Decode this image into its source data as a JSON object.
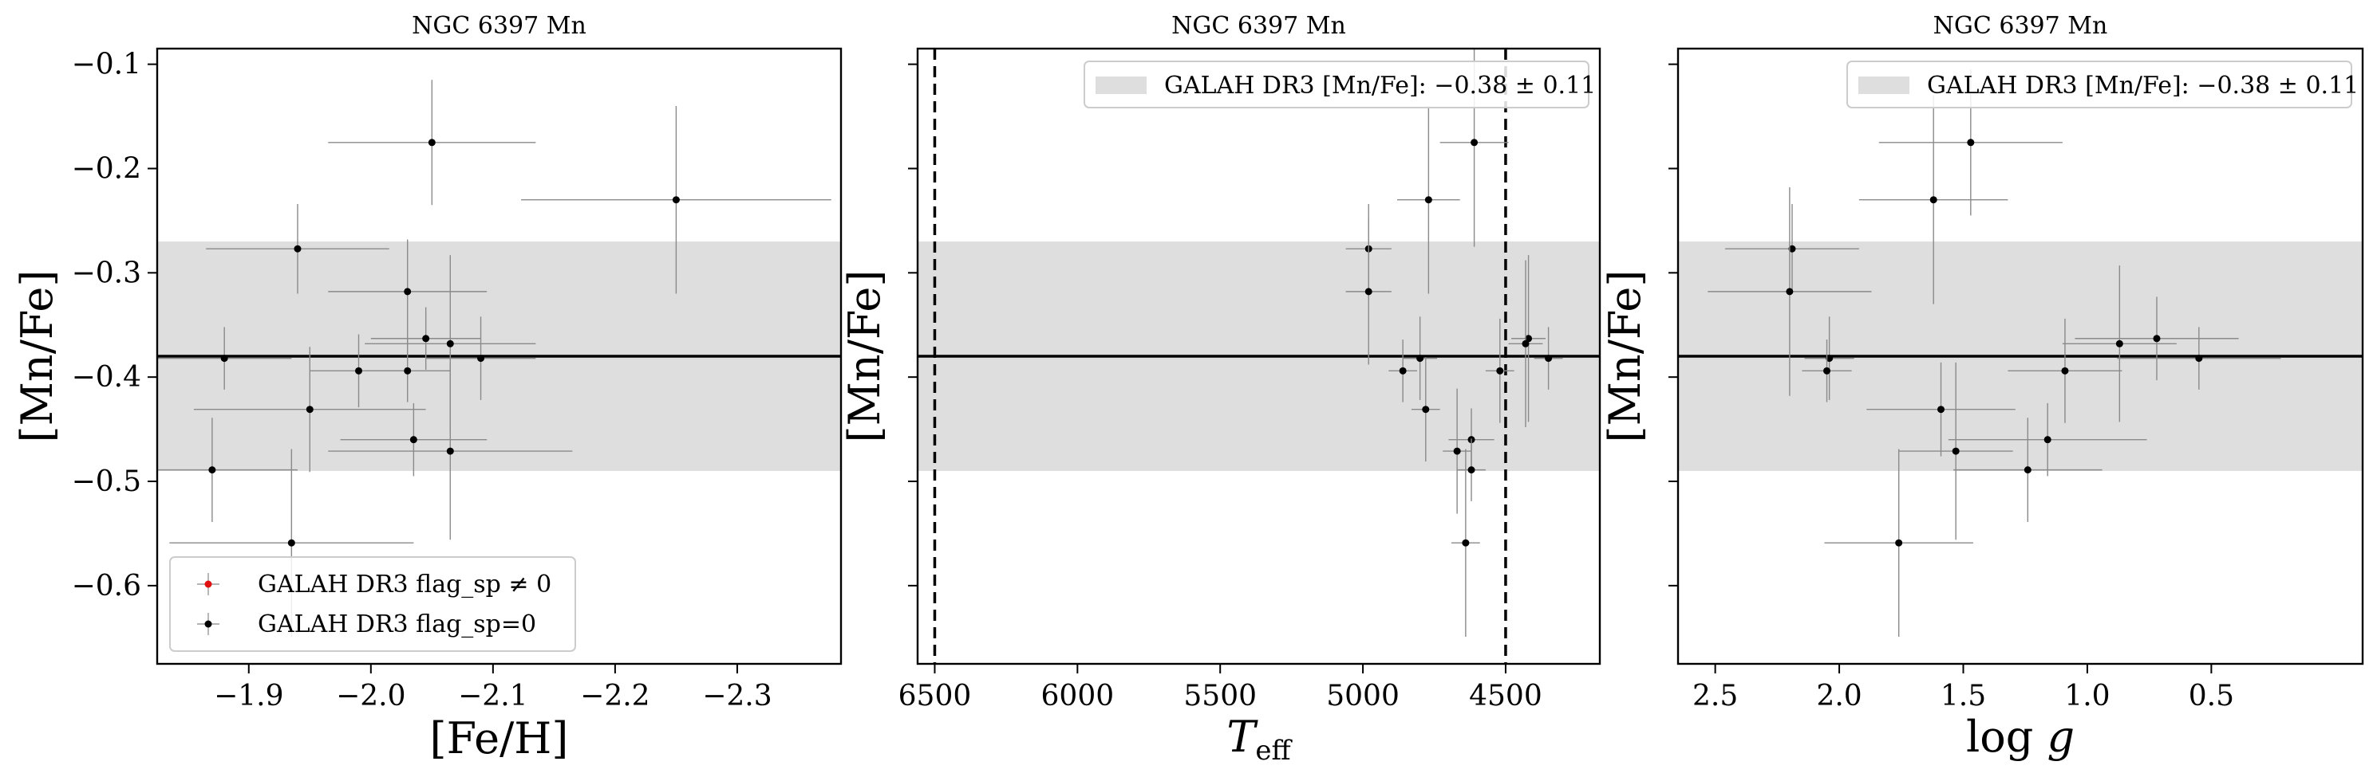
{
  "chart_data": [
    {
      "type": "scatter",
      "title": "NGC 6397 Mn",
      "xlabel": "[Fe/H]",
      "ylabel": "[Mn/Fe]",
      "xlim": [
        -1.825,
        -2.385
      ],
      "ylim": [
        -0.675,
        -0.085
      ],
      "xticks": [
        -1.9,
        -2.0,
        -2.1,
        -2.2,
        -2.3
      ],
      "xtick_labels": [
        "−1.9",
        "−2.0",
        "−2.1",
        "−2.2",
        "−2.3"
      ],
      "yticks": [
        -0.1,
        -0.2,
        -0.3,
        -0.4,
        -0.5,
        -0.6
      ],
      "ytick_labels": [
        "−0.1",
        "−0.2",
        "−0.3",
        "−0.4",
        "−0.5",
        "−0.6"
      ],
      "band": {
        "center": -0.38,
        "error": 0.11,
        "color": "#dedede"
      },
      "legend": {
        "position": "lower-left",
        "entries": [
          {
            "label": "GALAH DR3 flag_sp ≠ 0",
            "color": "#e01010"
          },
          {
            "label": "GALAH DR3 flag_sp=0",
            "color": "#000000"
          }
        ]
      },
      "series": [
        {
          "color": "#000000",
          "points": [
            {
              "x": -2.05,
              "y": -0.175,
              "xerr": 0.085,
              "yerr": 0.06
            },
            {
              "x": -2.25,
              "y": -0.23,
              "xerr": 0.127,
              "yerr": 0.09
            },
            {
              "x": -1.94,
              "y": -0.277,
              "xerr": 0.075,
              "yerr": 0.043
            },
            {
              "x": -2.03,
              "y": -0.318,
              "xerr": 0.065,
              "yerr": 0.05
            },
            {
              "x": -1.88,
              "y": -0.382,
              "xerr": 0.055,
              "yerr": 0.03
            },
            {
              "x": -2.09,
              "y": -0.382,
              "xerr": 0.045,
              "yerr": 0.04
            },
            {
              "x": -1.99,
              "y": -0.394,
              "xerr": 0.04,
              "yerr": 0.035
            },
            {
              "x": -2.03,
              "y": -0.394,
              "xerr": 0.035,
              "yerr": 0.03
            },
            {
              "x": -2.045,
              "y": -0.363,
              "xerr": 0.045,
              "yerr": 0.03
            },
            {
              "x": -2.065,
              "y": -0.368,
              "xerr": 0.07,
              "yerr": 0.085
            },
            {
              "x": -1.95,
              "y": -0.431,
              "xerr": 0.095,
              "yerr": 0.06
            },
            {
              "x": -2.035,
              "y": -0.46,
              "xerr": 0.06,
              "yerr": 0.035
            },
            {
              "x": -2.065,
              "y": -0.471,
              "xerr": 0.1,
              "yerr": 0.085
            },
            {
              "x": -1.87,
              "y": -0.489,
              "xerr": 0.07,
              "yerr": 0.05
            },
            {
              "x": -1.935,
              "y": -0.559,
              "xerr": 0.1,
              "yerr": 0.09
            }
          ]
        }
      ]
    },
    {
      "type": "scatter",
      "title": "NGC 6397 Mn",
      "xlabel": "T_eff",
      "ylabel": "[Mn/Fe]",
      "xlim": [
        6560,
        4170
      ],
      "ylim": [
        -0.675,
        -0.085
      ],
      "xticks": [
        6500,
        6000,
        5500,
        5000,
        4500
      ],
      "xtick_labels": [
        "6500",
        "6000",
        "5500",
        "5000",
        "4500"
      ],
      "yticks": [
        -0.1,
        -0.2,
        -0.3,
        -0.4,
        -0.5,
        -0.6
      ],
      "ytick_labels": [
        "",
        "",
        "",
        "",
        "",
        ""
      ],
      "band": {
        "center": -0.38,
        "error": 0.11,
        "color": "#dedede"
      },
      "vlines": [
        6500,
        4500
      ],
      "legend": {
        "position": "upper-right",
        "entries": [
          {
            "label": "GALAH DR3 [Mn/Fe]: −0.38 ± 0.11",
            "color": "#dedede"
          }
        ]
      },
      "series": [
        {
          "color": "#000000",
          "points": [
            {
              "x": 4610,
              "y": -0.175,
              "xerr": 120,
              "yerr": 0.1
            },
            {
              "x": 4770,
              "y": -0.23,
              "xerr": 110,
              "yerr": 0.09
            },
            {
              "x": 4980,
              "y": -0.277,
              "xerr": 80,
              "yerr": 0.043
            },
            {
              "x": 4980,
              "y": -0.318,
              "xerr": 80,
              "yerr": 0.07
            },
            {
              "x": 4420,
              "y": -0.363,
              "xerr": 60,
              "yerr": 0.08
            },
            {
              "x": 4430,
              "y": -0.368,
              "xerr": 60,
              "yerr": 0.08
            },
            {
              "x": 4350,
              "y": -0.382,
              "xerr": 50,
              "yerr": 0.03
            },
            {
              "x": 4800,
              "y": -0.382,
              "xerr": 60,
              "yerr": 0.04
            },
            {
              "x": 4860,
              "y": -0.394,
              "xerr": 50,
              "yerr": 0.03
            },
            {
              "x": 4520,
              "y": -0.394,
              "xerr": 50,
              "yerr": 0.05
            },
            {
              "x": 4780,
              "y": -0.431,
              "xerr": 50,
              "yerr": 0.05
            },
            {
              "x": 4620,
              "y": -0.46,
              "xerr": 80,
              "yerr": 0.03
            },
            {
              "x": 4670,
              "y": -0.471,
              "xerr": 50,
              "yerr": 0.06
            },
            {
              "x": 4620,
              "y": -0.489,
              "xerr": 50,
              "yerr": 0.03
            },
            {
              "x": 4640,
              "y": -0.559,
              "xerr": 50,
              "yerr": 0.09
            }
          ]
        }
      ]
    },
    {
      "type": "scatter",
      "title": "NGC 6397 Mn",
      "xlabel": "log g",
      "ylabel": "[Mn/Fe]",
      "xlim": [
        2.65,
        -0.11
      ],
      "ylim": [
        -0.675,
        -0.085
      ],
      "xticks": [
        2.5,
        2.0,
        1.5,
        1.0,
        0.5
      ],
      "xtick_labels": [
        "2.5",
        "2.0",
        "1.5",
        "1.0",
        "0.5"
      ],
      "yticks": [
        -0.1,
        -0.2,
        -0.3,
        -0.4,
        -0.5,
        -0.6
      ],
      "ytick_labels": [
        "",
        "",
        "",
        "",
        "",
        ""
      ],
      "band": {
        "center": -0.38,
        "error": 0.11,
        "color": "#dedede"
      },
      "legend": {
        "position": "upper-right",
        "entries": [
          {
            "label": "GALAH DR3 [Mn/Fe]: −0.38 ± 0.11",
            "color": "#dedede"
          }
        ]
      },
      "series": [
        {
          "color": "#000000",
          "points": [
            {
              "x": 1.47,
              "y": -0.175,
              "xerr": 0.37,
              "yerr": 0.07
            },
            {
              "x": 1.62,
              "y": -0.23,
              "xerr": 0.3,
              "yerr": 0.1
            },
            {
              "x": 2.19,
              "y": -0.277,
              "xerr": 0.27,
              "yerr": 0.043
            },
            {
              "x": 2.2,
              "y": -0.318,
              "xerr": 0.33,
              "yerr": 0.1
            },
            {
              "x": 0.87,
              "y": -0.368,
              "xerr": 0.23,
              "yerr": 0.075
            },
            {
              "x": 0.72,
              "y": -0.363,
              "xerr": 0.33,
              "yerr": 0.04
            },
            {
              "x": 0.55,
              "y": -0.382,
              "xerr": 0.33,
              "yerr": 0.03
            },
            {
              "x": 2.04,
              "y": -0.382,
              "xerr": 0.1,
              "yerr": 0.04
            },
            {
              "x": 2.05,
              "y": -0.394,
              "xerr": 0.1,
              "yerr": 0.03
            },
            {
              "x": 1.09,
              "y": -0.394,
              "xerr": 0.23,
              "yerr": 0.05
            },
            {
              "x": 1.59,
              "y": -0.431,
              "xerr": 0.3,
              "yerr": 0.045
            },
            {
              "x": 1.16,
              "y": -0.46,
              "xerr": 0.4,
              "yerr": 0.035
            },
            {
              "x": 1.53,
              "y": -0.471,
              "xerr": 0.23,
              "yerr": 0.085
            },
            {
              "x": 1.24,
              "y": -0.489,
              "xerr": 0.3,
              "yerr": 0.05
            },
            {
              "x": 1.76,
              "y": -0.559,
              "xerr": 0.3,
              "yerr": 0.09
            }
          ]
        }
      ]
    }
  ]
}
